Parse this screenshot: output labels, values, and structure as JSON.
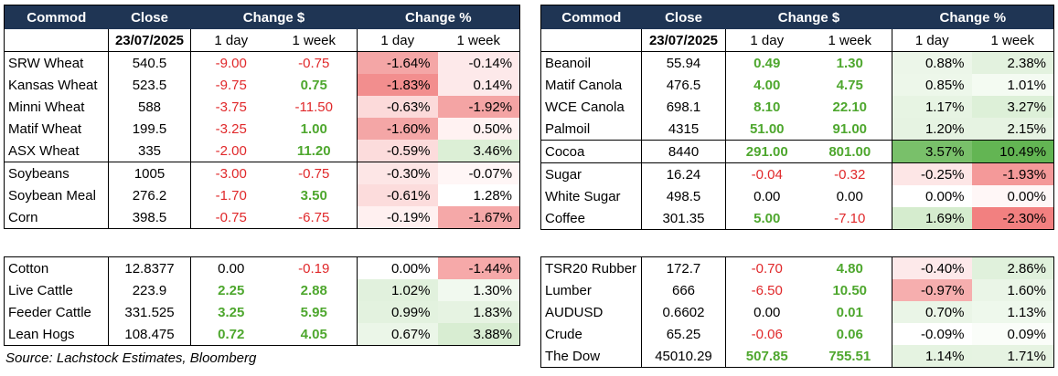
{
  "headers": {
    "commod": "Commod",
    "close": "Close",
    "change_d": "Change $",
    "change_p": "Change %"
  },
  "subheaders": {
    "date": "23/07/2025",
    "d1": "1 day",
    "w1": "1 week"
  },
  "tables": [
    {
      "id": "tl",
      "rows": [
        [
          "SRW Wheat",
          "540.5",
          "-9.00",
          "-0.75",
          "-1.64%",
          "-0.14%"
        ],
        [
          "Kansas Wheat",
          "523.5",
          "-9.75",
          "0.75",
          "-1.83%",
          "0.14%"
        ],
        [
          "Minni Wheat",
          "588",
          "-3.75",
          "-11.50",
          "-0.63%",
          "-1.92%"
        ],
        [
          "Matif Wheat",
          "199.5",
          "-3.25",
          "1.00",
          "-1.60%",
          "0.50%"
        ],
        [
          "ASX Wheat",
          "335",
          "-2.00",
          "11.20",
          "-0.59%",
          "3.46%"
        ],
        [
          "Soybeans",
          "1005",
          "-3.00",
          "-0.75",
          "-0.30%",
          "-0.07%"
        ],
        [
          "Soybean Meal",
          "276.2",
          "-1.70",
          "3.50",
          "-0.61%",
          "1.28%"
        ],
        [
          "Corn",
          "398.5",
          "-0.75",
          "-6.75",
          "-0.19%",
          "-1.67%"
        ]
      ]
    },
    {
      "id": "tr",
      "rows": [
        [
          "Beanoil",
          "55.94",
          "0.49",
          "1.30",
          "0.88%",
          "2.38%"
        ],
        [
          "Matif Canola",
          "476.5",
          "4.00",
          "4.75",
          "0.85%",
          "1.01%"
        ],
        [
          "WCE Canola",
          "698.1",
          "8.10",
          "22.10",
          "1.17%",
          "3.27%"
        ],
        [
          "Palmoil",
          "4315",
          "51.00",
          "91.00",
          "1.20%",
          "2.15%"
        ],
        [
          "Cocoa",
          "8440",
          "291.00",
          "801.00",
          "3.57%",
          "10.49%"
        ],
        [
          "Sugar",
          "16.24",
          "-0.04",
          "-0.32",
          "-0.25%",
          "-1.93%"
        ],
        [
          "White Sugar",
          "498.5",
          "0.00",
          "0.00",
          "0.00%",
          "0.00%"
        ],
        [
          "Coffee",
          "301.35",
          "5.00",
          "-7.10",
          "1.69%",
          "-2.30%"
        ]
      ]
    },
    {
      "id": "bl",
      "rows": [
        [
          "Cotton",
          "12.8377",
          "0.00",
          "-0.19",
          "0.00%",
          "-1.44%"
        ],
        [
          "Live Cattle",
          "223.9",
          "2.25",
          "2.88",
          "1.02%",
          "1.30%"
        ],
        [
          "Feeder Cattle",
          "331.525",
          "3.25",
          "5.95",
          "0.99%",
          "1.83%"
        ],
        [
          "Lean Hogs",
          "108.475",
          "0.72",
          "4.05",
          "0.67%",
          "3.88%"
        ]
      ]
    },
    {
      "id": "br",
      "rows": [
        [
          "TSR20 Rubber",
          "172.7",
          "-0.70",
          "4.80",
          "-0.40%",
          "2.86%"
        ],
        [
          "Lumber",
          "666",
          "-6.50",
          "10.50",
          "-0.97%",
          "1.60%"
        ],
        [
          "AUDUSD",
          "0.6602",
          "0.00",
          "0.01",
          "0.70%",
          "1.13%"
        ],
        [
          "Crude",
          "65.25",
          "-0.06",
          "0.06",
          "-0.09%",
          "0.09%"
        ],
        [
          "The Dow",
          "45010.29",
          "507.85",
          "755.51",
          "1.14%",
          "1.71%"
        ]
      ]
    }
  ],
  "heat": {
    "tl": [
      [
        "#f4a6a6",
        "#fde9ea"
      ],
      [
        "#f28e8e",
        "#fde9ea"
      ],
      [
        "#fcdada",
        "#f4a4a4"
      ],
      [
        "#f4a6a6",
        "#fff2f2"
      ],
      [
        "#fcdcdc",
        "#dcefd6"
      ],
      [
        "#fde6e6",
        "#fff6f6"
      ],
      [
        "#fcdcdc",
        "#ffffff"
      ],
      [
        "#fff0f0",
        "#f5a8a8"
      ]
    ],
    "tr": [
      [
        "#ecf6e9",
        "#e3f2df"
      ],
      [
        "#edf7ea",
        "#f4fbf2"
      ],
      [
        "#e7f4e3",
        "#ddf0d8"
      ],
      [
        "#e6f3e2",
        "#e6f3e2"
      ],
      [
        "#79c06a",
        "#63b553"
      ],
      [
        "#fde6e6",
        "#f49999"
      ],
      [
        "#ffffff",
        "#fff7f7"
      ],
      [
        "#d5ecce",
        "#f28080"
      ]
    ],
    "bl": [
      [
        "#ffffff",
        "#f6a9a9"
      ],
      [
        "#e1f1dd",
        "#f1f9ef"
      ],
      [
        "#e3f2df",
        "#e6f3e2"
      ],
      [
        "#ebf6e8",
        "#d8edd2"
      ]
    ],
    "br": [
      [
        "#fde9ea",
        "#e0f1dc"
      ],
      [
        "#f6aeae",
        "#eaf5e7"
      ],
      [
        "#eaf5e7",
        "#eef8ec"
      ],
      [
        "#ffffff",
        "#fafdf9"
      ],
      [
        "#e5f3e1",
        "#e6f3e2"
      ]
    ]
  },
  "source": "Source: Lachstock Estimates, Bloomberg"
}
